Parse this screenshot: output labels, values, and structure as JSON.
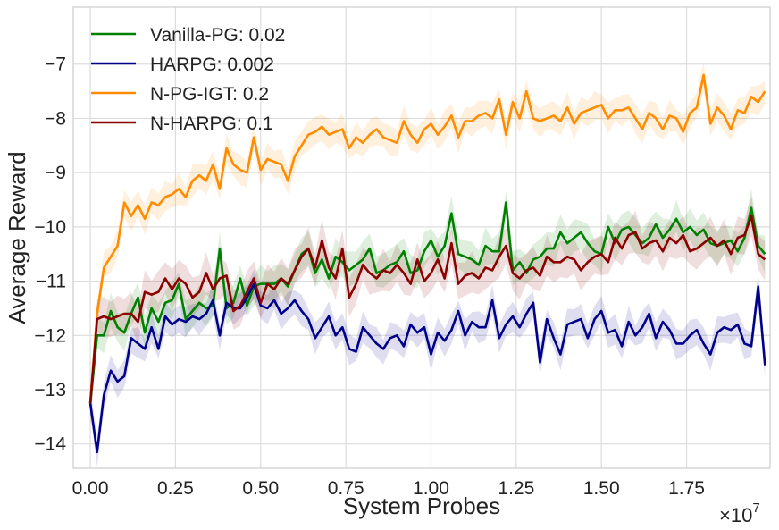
{
  "chart_data": {
    "type": "line",
    "title": "",
    "xlabel": "System Probes",
    "ylabel": "Average Reward",
    "x_multiplier_label": "×10",
    "x_multiplier_exponent": "7",
    "xlim": [
      -0.05,
      1.995
    ],
    "ylim": [
      -14.45,
      -5.95
    ],
    "grid": true,
    "legend_position": "top-left",
    "x_ticks": [
      0.0,
      0.25,
      0.5,
      0.75,
      1.0,
      1.25,
      1.5,
      1.75
    ],
    "x_tick_labels": [
      "0.00",
      "0.25",
      "0.50",
      "0.75",
      "1.00",
      "1.25",
      "1.50",
      "1.75"
    ],
    "y_ticks": [
      -14,
      -13,
      -12,
      -11,
      -10,
      -9,
      -8,
      -7
    ],
    "y_tick_labels": [
      "−14",
      "−13",
      "−12",
      "−11",
      "−10",
      "−9",
      "−8",
      "−7"
    ],
    "x_start": 0.0,
    "x_step": 0.02,
    "band_note": "shaded band = mean ± spread",
    "series": [
      {
        "name": "Vanilla-PG: 0.02",
        "color": "#008000",
        "values": [
          -13.25,
          -12.0,
          -12.0,
          -11.55,
          -11.85,
          -11.95,
          -11.6,
          -11.3,
          -11.95,
          -11.5,
          -11.75,
          -11.4,
          -11.35,
          -11.05,
          -11.7,
          -11.55,
          -11.4,
          -11.5,
          -11.45,
          -10.4,
          -11.5,
          -11.4,
          -10.95,
          -11.45,
          -11.1,
          -11.05,
          -11.05,
          -11.05,
          -10.95,
          -11.1,
          -10.8,
          -10.5,
          -10.4,
          -10.85,
          -10.6,
          -10.95,
          -10.55,
          -10.65,
          -10.8,
          -10.7,
          -10.6,
          -10.4,
          -10.85,
          -10.8,
          -10.7,
          -10.65,
          -10.45,
          -10.85,
          -10.8,
          -10.45,
          -10.25,
          -10.55,
          -10.35,
          -9.75,
          -10.5,
          -10.55,
          -10.6,
          -10.7,
          -10.35,
          -10.45,
          -10.45,
          -9.55,
          -10.8,
          -10.65,
          -10.85,
          -10.6,
          -10.55,
          -10.4,
          -10.4,
          -10.1,
          -10.3,
          -10.2,
          -10.1,
          -10.3,
          -10.45,
          -10.5,
          -10.0,
          -10.3,
          -10.05,
          -10.0,
          -10.15,
          -10.3,
          -10.2,
          -9.95,
          -10.2,
          -10.05,
          -9.85,
          -10.1,
          -10.0,
          -10.15,
          -10.05,
          -10.3,
          -10.35,
          -10.3,
          -10.25,
          -10.45,
          -10.2,
          -9.65,
          -10.35,
          -10.5
        ]
      },
      {
        "name": "HARPG: 0.002",
        "color": "#00008B",
        "values": [
          -13.25,
          -14.15,
          -13.1,
          -12.65,
          -12.85,
          -12.75,
          -12.05,
          -12.15,
          -12.25,
          -11.85,
          -12.25,
          -11.65,
          -11.8,
          -11.7,
          -11.75,
          -11.65,
          -11.7,
          -11.6,
          -11.35,
          -12.0,
          -11.4,
          -11.5,
          -11.5,
          -11.3,
          -11.05,
          -11.45,
          -11.5,
          -11.35,
          -11.6,
          -11.5,
          -11.35,
          -11.55,
          -11.7,
          -12.05,
          -11.85,
          -11.65,
          -12.0,
          -11.85,
          -12.25,
          -12.3,
          -11.85,
          -12.0,
          -12.15,
          -12.25,
          -12.05,
          -12.0,
          -12.2,
          -11.8,
          -11.95,
          -11.85,
          -12.35,
          -11.95,
          -12.1,
          -11.9,
          -11.55,
          -12.0,
          -11.75,
          -11.85,
          -11.85,
          -11.35,
          -12.05,
          -11.8,
          -11.65,
          -11.85,
          -11.6,
          -11.4,
          -12.5,
          -11.7,
          -12.05,
          -12.35,
          -11.8,
          -11.75,
          -11.7,
          -12.05,
          -11.7,
          -11.55,
          -11.95,
          -11.9,
          -12.2,
          -11.75,
          -12.0,
          -11.85,
          -11.6,
          -12.05,
          -11.75,
          -11.9,
          -12.15,
          -12.15,
          -12.0,
          -11.9,
          -12.15,
          -12.35,
          -11.95,
          -11.85,
          -11.9,
          -11.8,
          -12.15,
          -12.2,
          -11.1,
          -12.55
        ]
      },
      {
        "name": "N-PG-IGT: 0.2",
        "color": "#FF8C00",
        "values": [
          -13.25,
          -11.6,
          -10.75,
          -10.55,
          -10.35,
          -9.55,
          -9.8,
          -9.6,
          -9.85,
          -9.55,
          -9.6,
          -9.45,
          -9.4,
          -9.3,
          -9.45,
          -9.15,
          -9.05,
          -9.15,
          -8.85,
          -9.3,
          -8.55,
          -8.85,
          -8.95,
          -9.0,
          -8.35,
          -8.95,
          -8.75,
          -8.8,
          -8.85,
          -9.15,
          -8.7,
          -8.5,
          -8.3,
          -8.25,
          -8.15,
          -8.3,
          -8.25,
          -8.2,
          -8.55,
          -8.35,
          -8.45,
          -8.3,
          -8.2,
          -8.35,
          -8.4,
          -8.45,
          -8.05,
          -8.3,
          -8.45,
          -8.2,
          -8.1,
          -8.3,
          -8.15,
          -7.95,
          -8.35,
          -8.05,
          -8.05,
          -7.95,
          -7.9,
          -8.0,
          -7.65,
          -8.3,
          -7.7,
          -8.0,
          -7.5,
          -8.0,
          -8.05,
          -8.0,
          -7.95,
          -8.05,
          -7.8,
          -8.1,
          -7.9,
          -7.85,
          -7.8,
          -7.75,
          -8.0,
          -7.85,
          -7.85,
          -7.8,
          -8.0,
          -8.2,
          -7.9,
          -8.0,
          -8.2,
          -7.95,
          -8.0,
          -8.25,
          -7.9,
          -7.8,
          -7.2,
          -8.1,
          -7.8,
          -7.95,
          -8.2,
          -7.85,
          -7.9,
          -7.6,
          -7.7,
          -7.5
        ]
      },
      {
        "name": "N-HARPG: 0.1",
        "color": "#8B0000",
        "values": [
          -13.25,
          -11.7,
          -11.65,
          -11.7,
          -11.65,
          -11.6,
          -11.6,
          -11.75,
          -11.2,
          -11.25,
          -11.2,
          -10.95,
          -11.15,
          -10.95,
          -11.05,
          -11.3,
          -11.2,
          -10.85,
          -11.15,
          -10.95,
          -10.9,
          -11.55,
          -11.45,
          -11.2,
          -10.95,
          -11.4,
          -11.05,
          -11.15,
          -10.95,
          -11.05,
          -10.8,
          -10.55,
          -10.4,
          -10.75,
          -10.25,
          -10.75,
          -10.95,
          -10.4,
          -11.3,
          -11.05,
          -10.7,
          -10.85,
          -10.95,
          -10.8,
          -10.85,
          -10.7,
          -10.85,
          -11.05,
          -10.6,
          -11.0,
          -10.85,
          -10.6,
          -10.95,
          -10.3,
          -11.05,
          -10.9,
          -10.85,
          -10.95,
          -10.75,
          -10.8,
          -10.55,
          -10.35,
          -10.85,
          -10.95,
          -10.8,
          -10.75,
          -10.9,
          -10.55,
          -10.65,
          -10.65,
          -10.55,
          -10.6,
          -10.8,
          -10.65,
          -10.55,
          -10.5,
          -10.65,
          -10.2,
          -10.4,
          -10.15,
          -10.1,
          -10.4,
          -10.3,
          -10.25,
          -10.45,
          -10.2,
          -10.3,
          -10.15,
          -10.45,
          -10.4,
          -10.3,
          -10.2,
          -10.35,
          -10.25,
          -10.5,
          -10.2,
          -10.15,
          -9.8,
          -10.5,
          -10.6
        ]
      }
    ]
  }
}
